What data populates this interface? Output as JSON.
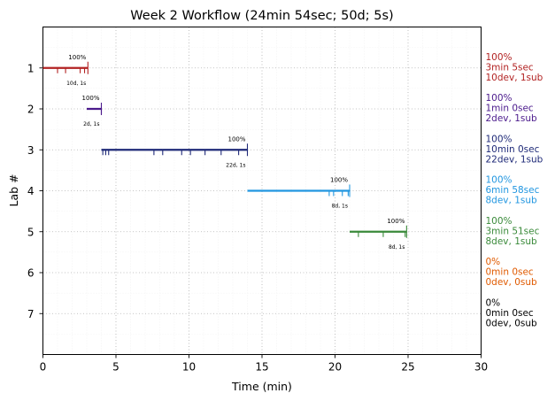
{
  "chart_data": {
    "type": "timeline",
    "title": "Week 2 Workflow (24min 54sec; 50d; 5s)",
    "xlabel": "Time (min)",
    "ylabel": "Lab #",
    "xlim": [
      0,
      30
    ],
    "ylim": [
      8,
      0
    ],
    "xticks": [
      0,
      5,
      10,
      15,
      20,
      25,
      30
    ],
    "yticks": [
      1,
      2,
      3,
      4,
      5,
      6,
      7
    ],
    "grid": true,
    "labs": [
      {
        "lab": 1,
        "color": "#b22222",
        "start": 0,
        "end": 3.08,
        "devs": [
          1.0,
          1.55,
          2.55,
          2.85
        ],
        "sub_marks": [
          3.08
        ],
        "percent_label": "100%",
        "count_label": "10d, 1s",
        "side": [
          "100%",
          "3min 5sec",
          "10dev, 1sub"
        ]
      },
      {
        "lab": 2,
        "color": "#4b1a8c",
        "start": 3.0,
        "end": 4.0,
        "devs": [
          4.0
        ],
        "sub_marks": [
          4.0
        ],
        "percent_label": "100%",
        "count_label": "2d, 1s",
        "side": [
          "100%",
          "1min 0sec",
          "2dev, 1sub"
        ]
      },
      {
        "lab": 3,
        "color": "#1f2a78",
        "start": 4.0,
        "end": 14.0,
        "devs": [
          4.1,
          4.3,
          4.5,
          7.6,
          8.2,
          9.5,
          10.1,
          11.1,
          12.2,
          13.4
        ],
        "sub_marks": [
          14.0
        ],
        "percent_label": "100%",
        "count_label": "22d, 1s",
        "side": [
          "100%",
          "10min 0sec",
          "22dev, 1sub"
        ]
      },
      {
        "lab": 4,
        "color": "#2196e0",
        "start": 14.0,
        "end": 21.0,
        "devs": [
          19.6,
          19.9,
          20.5,
          20.9
        ],
        "sub_marks": [
          21.0
        ],
        "percent_label": "100%",
        "count_label": "8d, 1s",
        "side": [
          "100%",
          "6min 58sec",
          "8dev, 1sub"
        ]
      },
      {
        "lab": 5,
        "color": "#3a8a3a",
        "start": 21.0,
        "end": 24.9,
        "devs": [
          21.6,
          23.3,
          24.8
        ],
        "sub_marks": [
          24.9
        ],
        "percent_label": "100%",
        "count_label": "8d, 1s",
        "side": [
          "100%",
          "3min 51sec",
          "8dev, 1sub"
        ]
      },
      {
        "lab": 6,
        "color": "#e05a00",
        "start": null,
        "end": null,
        "devs": [],
        "sub_marks": [],
        "percent_label": "",
        "count_label": "",
        "side": [
          "0%",
          "0min 0sec",
          "0dev, 0sub"
        ]
      },
      {
        "lab": 7,
        "color": "#000000",
        "start": null,
        "end": null,
        "devs": [],
        "sub_marks": [],
        "percent_label": "",
        "count_label": "",
        "side": [
          "0%",
          "0min 0sec",
          "0dev, 0sub"
        ]
      }
    ]
  }
}
